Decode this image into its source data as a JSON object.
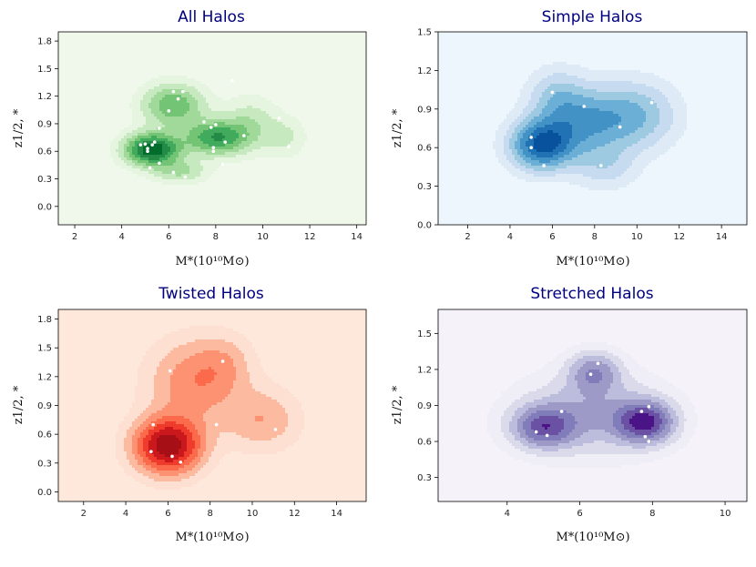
{
  "figure": {
    "background": "#ffffff",
    "title_color": "#00007f"
  },
  "chart_data": [
    {
      "type": "contour",
      "id": "all",
      "title": "All Halos",
      "xlabel": "M*(10¹⁰M⊙)",
      "ylabel": "z1/2, *",
      "xlim": [
        1.3,
        14.4
      ],
      "ylim": [
        -0.2,
        1.9
      ],
      "xticks": [
        2,
        4,
        6,
        8,
        10,
        12,
        14
      ],
      "xtick_labels": [
        "2",
        "4",
        "6",
        "8",
        "10",
        "12",
        "14"
      ],
      "yticks": [
        0.0,
        0.3,
        0.6,
        0.9,
        1.2,
        1.5,
        1.8
      ],
      "ytick_labels": [
        "0.0",
        "0.3",
        "0.6",
        "0.9",
        "1.2",
        "1.5",
        "1.8"
      ],
      "background": "#f0f8ec",
      "colors": [
        "#e5f5e0",
        "#c7e9c0",
        "#a1d99b",
        "#74c476",
        "#41ab5d",
        "#238b45",
        "#006d2c"
      ],
      "kernels": [
        {
          "mean": [
            5.3,
            0.62
          ],
          "sd": [
            0.8,
            0.12
          ],
          "w": 1.0
        },
        {
          "mean": [
            6.2,
            1.1
          ],
          "sd": [
            0.9,
            0.16
          ],
          "w": 0.55
        },
        {
          "mean": [
            8.0,
            0.75
          ],
          "sd": [
            0.9,
            0.13
          ],
          "w": 0.7
        },
        {
          "mean": [
            9.5,
            0.9
          ],
          "sd": [
            0.8,
            0.2
          ],
          "w": 0.25
        },
        {
          "mean": [
            11.0,
            0.75
          ],
          "sd": [
            0.6,
            0.15
          ],
          "w": 0.18
        },
        {
          "mean": [
            6.5,
            0.38
          ],
          "sd": [
            0.8,
            0.09
          ],
          "w": 0.3
        }
      ],
      "points": [
        [
          4.8,
          0.67
        ],
        [
          5.0,
          0.68
        ],
        [
          5.1,
          0.6
        ],
        [
          5.1,
          0.63
        ],
        [
          5.3,
          0.67
        ],
        [
          5.4,
          0.7
        ],
        [
          5.6,
          0.85
        ],
        [
          5.6,
          0.47
        ],
        [
          5.2,
          0.42
        ],
        [
          6.0,
          1.04
        ],
        [
          6.2,
          1.25
        ],
        [
          6.4,
          1.17
        ],
        [
          6.6,
          1.25
        ],
        [
          6.2,
          0.37
        ],
        [
          6.7,
          0.32
        ],
        [
          7.5,
          0.92
        ],
        [
          7.8,
          0.86
        ],
        [
          8.0,
          0.89
        ],
        [
          7.9,
          0.64
        ],
        [
          7.9,
          0.6
        ],
        [
          8.4,
          0.7
        ],
        [
          8.3,
          0.46
        ],
        [
          9.2,
          0.77
        ],
        [
          8.7,
          1.37
        ],
        [
          10.7,
          0.96
        ],
        [
          11.1,
          0.65
        ]
      ]
    },
    {
      "type": "contour",
      "id": "simple",
      "title": "Simple Halos",
      "xlabel": "M*(10¹⁰M⊙)",
      "ylabel": "z1/2, *",
      "xlim": [
        0.6,
        15.2
      ],
      "ylim": [
        0.0,
        1.5
      ],
      "xticks": [
        2,
        4,
        6,
        8,
        10,
        12,
        14
      ],
      "xtick_labels": [
        "2",
        "4",
        "6",
        "8",
        "10",
        "12",
        "14"
      ],
      "yticks": [
        0.0,
        0.3,
        0.6,
        0.9,
        1.2,
        1.5
      ],
      "ytick_labels": [
        "0.0",
        "0.3",
        "0.6",
        "0.9",
        "1.2",
        "1.5"
      ],
      "background": "#edf5fd",
      "colors": [
        "#deebf7",
        "#c6dbef",
        "#9ecae1",
        "#6baed6",
        "#4292c6",
        "#2171b5",
        "#08519c"
      ],
      "kernels": [
        {
          "mean": [
            5.5,
            0.62
          ],
          "sd": [
            1.0,
            0.13
          ],
          "w": 1.0
        },
        {
          "mean": [
            7.5,
            0.8
          ],
          "sd": [
            1.4,
            0.18
          ],
          "w": 0.6
        },
        {
          "mean": [
            10.0,
            0.85
          ],
          "sd": [
            1.3,
            0.18
          ],
          "w": 0.45
        },
        {
          "mean": [
            6.2,
            1.0
          ],
          "sd": [
            0.9,
            0.15
          ],
          "w": 0.3
        },
        {
          "mean": [
            8.5,
            0.45
          ],
          "sd": [
            1.0,
            0.12
          ],
          "w": 0.25
        }
      ],
      "points": [
        [
          5.0,
          0.68
        ],
        [
          5.0,
          0.6
        ],
        [
          5.6,
          0.46
        ],
        [
          6.0,
          1.03
        ],
        [
          7.5,
          0.92
        ],
        [
          8.3,
          0.46
        ],
        [
          9.2,
          0.76
        ],
        [
          10.7,
          0.95
        ]
      ]
    },
    {
      "type": "contour",
      "id": "twisted",
      "title": "Twisted Halos",
      "xlabel": "M*(10¹⁰M⊙)",
      "ylabel": "z1/2, *",
      "xlim": [
        0.8,
        15.4
      ],
      "ylim": [
        -0.1,
        1.9
      ],
      "xticks": [
        2,
        4,
        6,
        8,
        10,
        12,
        14
      ],
      "xtick_labels": [
        "2",
        "4",
        "6",
        "8",
        "10",
        "12",
        "14"
      ],
      "yticks": [
        0.0,
        0.3,
        0.6,
        0.9,
        1.2,
        1.5,
        1.8
      ],
      "ytick_labels": [
        "0.0",
        "0.3",
        "0.6",
        "0.9",
        "1.2",
        "1.5",
        "1.8"
      ],
      "background": "#fee8dc",
      "colors": [
        "#fee0d2",
        "#fcbba1",
        "#fc9272",
        "#fb6a4a",
        "#ef3b2c",
        "#cb181d",
        "#a50f15"
      ],
      "kernels": [
        {
          "mean": [
            6.0,
            0.48
          ],
          "sd": [
            1.1,
            0.2
          ],
          "w": 1.0
        },
        {
          "mean": [
            7.3,
            1.15
          ],
          "sd": [
            1.5,
            0.3
          ],
          "w": 0.4
        },
        {
          "mean": [
            10.5,
            0.75
          ],
          "sd": [
            1.2,
            0.22
          ],
          "w": 0.28
        },
        {
          "mean": [
            8.7,
            1.35
          ],
          "sd": [
            0.9,
            0.2
          ],
          "w": 0.15
        }
      ],
      "points": [
        [
          5.2,
          0.42
        ],
        [
          5.3,
          0.7
        ],
        [
          6.1,
          1.26
        ],
        [
          6.2,
          0.37
        ],
        [
          6.6,
          0.31
        ],
        [
          8.3,
          0.7
        ],
        [
          8.6,
          1.36
        ],
        [
          11.1,
          0.65
        ]
      ]
    },
    {
      "type": "contour",
      "id": "stretched",
      "title": "Stretched Halos",
      "xlabel": "M*(10¹⁰M⊙)",
      "ylabel": "z1/2, *",
      "xlim": [
        2.1,
        10.6
      ],
      "ylim": [
        0.1,
        1.7
      ],
      "xticks": [
        4,
        6,
        8,
        10
      ],
      "xtick_labels": [
        "4",
        "6",
        "8",
        "10"
      ],
      "yticks": [
        0.3,
        0.6,
        0.9,
        1.2,
        1.5
      ],
      "ytick_labels": [
        "0.3",
        "0.6",
        "0.9",
        "1.2",
        "1.5"
      ],
      "background": "#f5f3f9",
      "colors": [
        "#efedf5",
        "#dadaeb",
        "#bcbddc",
        "#9e9ac8",
        "#807dba",
        "#6a51a3",
        "#4a1486"
      ],
      "kernels": [
        {
          "mean": [
            5.0,
            0.72
          ],
          "sd": [
            0.6,
            0.12
          ],
          "w": 0.8
        },
        {
          "mean": [
            7.8,
            0.76
          ],
          "sd": [
            0.55,
            0.12
          ],
          "w": 1.0
        },
        {
          "mean": [
            6.4,
            1.18
          ],
          "sd": [
            0.5,
            0.12
          ],
          "w": 0.6
        },
        {
          "mean": [
            6.3,
            0.82
          ],
          "sd": [
            1.4,
            0.24
          ],
          "w": 0.5
        }
      ],
      "points": [
        [
          4.8,
          0.68
        ],
        [
          5.1,
          0.65
        ],
        [
          5.5,
          0.85
        ],
        [
          6.3,
          1.16
        ],
        [
          6.5,
          1.25
        ],
        [
          7.7,
          0.85
        ],
        [
          7.9,
          0.89
        ],
        [
          7.8,
          0.64
        ],
        [
          7.9,
          0.6
        ]
      ]
    }
  ]
}
